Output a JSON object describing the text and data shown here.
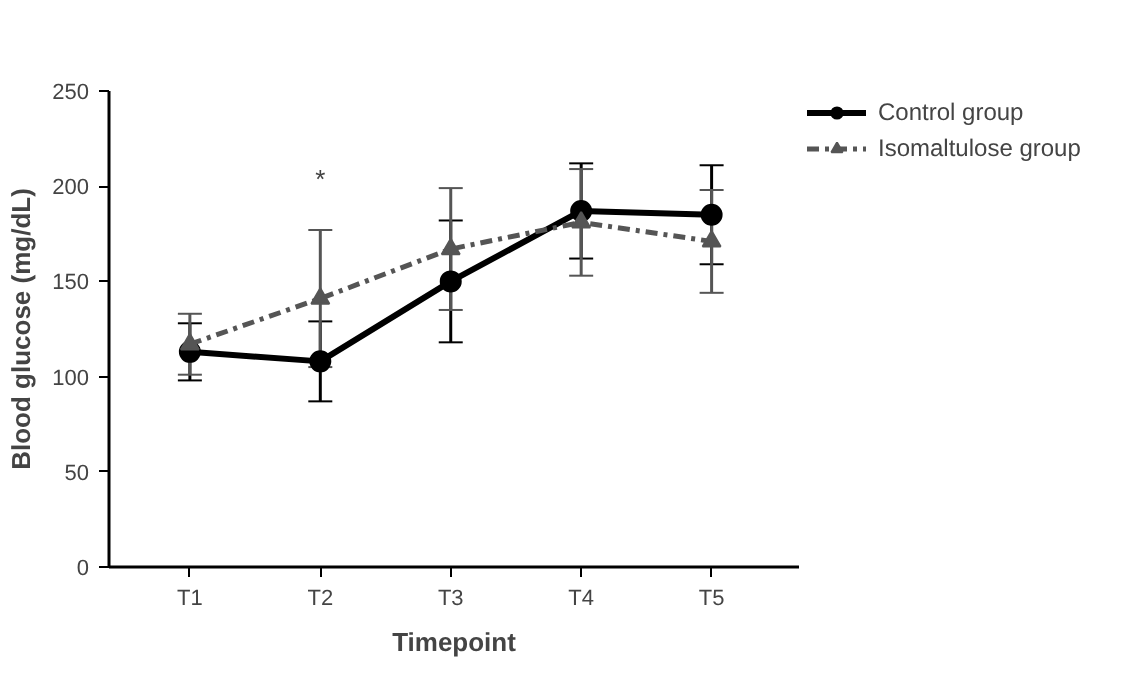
{
  "chart_data": {
    "type": "line",
    "xlabel": "Timepoint",
    "ylabel": "Blood glucose (mg/dL)",
    "categories": [
      "T1",
      "T2",
      "T3",
      "T4",
      "T5"
    ],
    "ylim": [
      0,
      250
    ],
    "yticks": [
      0,
      50,
      100,
      150,
      200,
      250
    ],
    "grid": false,
    "legend": "top right",
    "series": [
      {
        "name": "Control group",
        "color": "#000000",
        "marker": "circle",
        "line_style": "solid",
        "values": [
          113,
          108,
          150,
          187,
          185
        ],
        "errors": [
          15,
          21,
          32,
          25,
          26
        ]
      },
      {
        "name": "Isomaltulose group",
        "color": "#555555",
        "marker": "triangle",
        "line_style": "dashed",
        "values": [
          117,
          141,
          167,
          181,
          171
        ],
        "errors": [
          16,
          36,
          32,
          28,
          27
        ]
      }
    ],
    "annotations": [
      "*"
    ]
  }
}
